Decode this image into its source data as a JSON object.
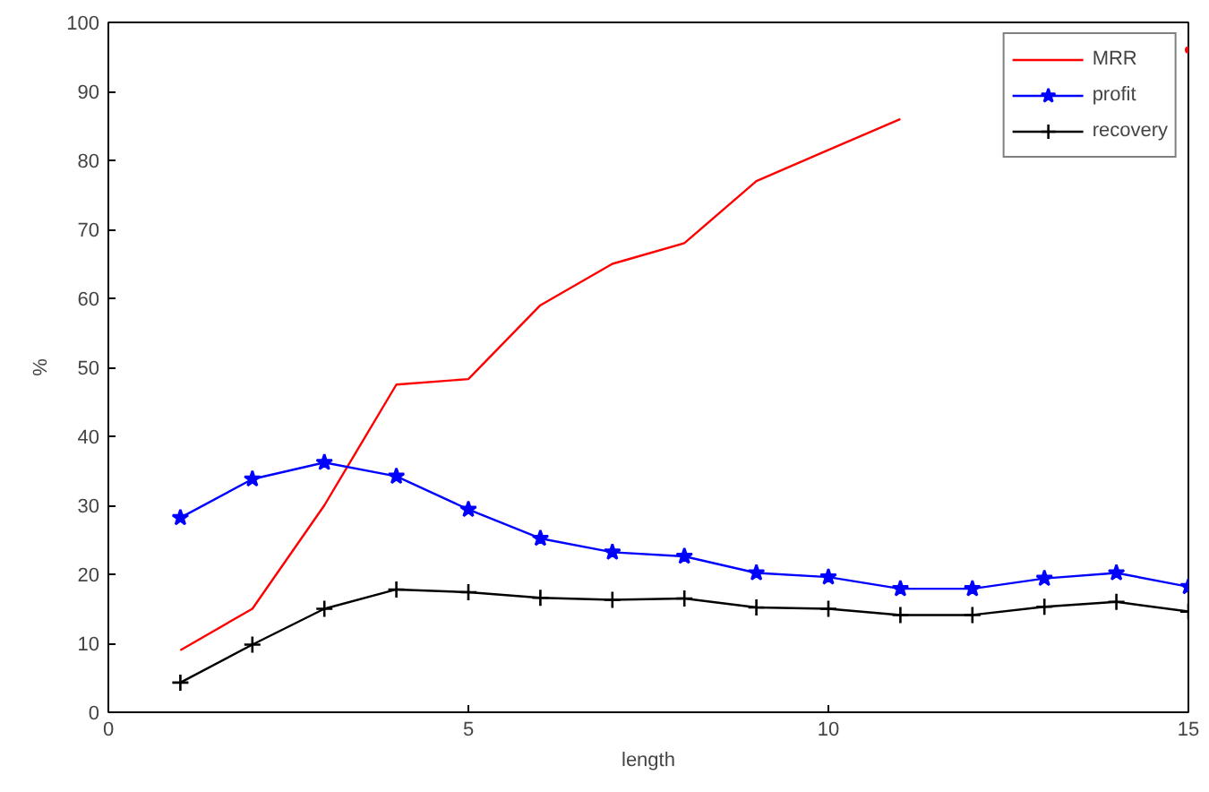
{
  "chart_data": {
    "type": "line",
    "xlabel": "length",
    "ylabel": "%",
    "x": [
      1,
      2,
      3,
      4,
      5,
      6,
      7,
      8,
      9,
      10,
      11,
      12,
      13,
      14,
      15
    ],
    "xlim": [
      0,
      15
    ],
    "xticks": [
      0,
      5,
      10,
      15
    ],
    "ylim": [
      0,
      100
    ],
    "yticks": [
      0,
      10,
      20,
      30,
      40,
      50,
      60,
      70,
      80,
      90,
      100
    ],
    "grid": false,
    "legend": "top right",
    "series": [
      {
        "name": "MRR",
        "color": "#ff0000",
        "marker": "none",
        "values": [
          9,
          15,
          30,
          47.5,
          48.3,
          59,
          65,
          68,
          77,
          81.5,
          86,
          null,
          null,
          null,
          96
        ]
      },
      {
        "name": "profit",
        "color": "#0000ff",
        "marker": "star",
        "values": [
          28.2,
          33.8,
          36.2,
          34.2,
          29.4,
          25.2,
          23.2,
          22.6,
          20.2,
          19.6,
          17.9,
          17.9,
          19.4,
          20.2,
          18.2
        ]
      },
      {
        "name": "recovery",
        "color": "#000000",
        "marker": "cross",
        "values": [
          4.3,
          9.8,
          15,
          17.8,
          17.4,
          16.6,
          16.3,
          16.5,
          15.2,
          15,
          14.1,
          14.1,
          15.3,
          16,
          14.6
        ]
      }
    ]
  }
}
